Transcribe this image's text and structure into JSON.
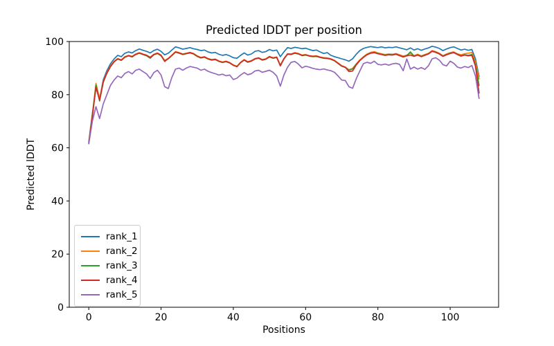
{
  "chart_data": {
    "type": "line",
    "title": "Predicted lDDT per position",
    "xlabel": "Positions",
    "ylabel": "Predicted lDDT",
    "xlim": [
      -5.4,
      113.4
    ],
    "ylim": [
      0,
      100
    ],
    "x_ticks": [
      0,
      20,
      40,
      60,
      80,
      100
    ],
    "y_ticks": [
      0,
      20,
      40,
      60,
      80,
      100
    ],
    "grid": false,
    "legend_position": "lower left",
    "x_start": 0,
    "x_step": 1,
    "n_points": 109,
    "series": [
      {
        "name": "rank_1",
        "color": "#1f77b4",
        "values": [
          62.3,
          73.0,
          82.6,
          78.2,
          85.6,
          89.0,
          91.6,
          93.4,
          94.8,
          94.3,
          95.6,
          96.1,
          95.7,
          96.6,
          97.2,
          96.7,
          96.3,
          95.7,
          96.6,
          97.1,
          96.3,
          95.0,
          95.6,
          96.8,
          98.0,
          97.6,
          97.1,
          97.4,
          97.7,
          97.3,
          97.0,
          96.6,
          96.8,
          96.1,
          95.7,
          95.9,
          95.2,
          94.8,
          95.1,
          94.6,
          93.9,
          93.7,
          94.8,
          95.7,
          94.9,
          95.3,
          96.3,
          96.6,
          95.9,
          96.2,
          97.0,
          96.5,
          96.8,
          94.3,
          96.1,
          97.7,
          97.4,
          97.8,
          97.6,
          97.3,
          97.5,
          97.0,
          96.6,
          96.8,
          96.1,
          95.5,
          95.8,
          94.8,
          94.3,
          93.9,
          93.5,
          93.1,
          92.6,
          93.5,
          95.2,
          96.6,
          97.4,
          97.8,
          98.1,
          97.9,
          97.7,
          98.0,
          97.6,
          97.8,
          97.7,
          98.0,
          97.6,
          97.3,
          96.9,
          97.6,
          96.8,
          97.3,
          96.7,
          97.2,
          97.6,
          98.2,
          97.9,
          97.4,
          96.6,
          97.2,
          97.7,
          98.0,
          97.4,
          96.8,
          97.1,
          96.7,
          97.0,
          93.5,
          86.8
        ]
      },
      {
        "name": "rank_2",
        "color": "#ff7f0e",
        "values": [
          62.0,
          72.5,
          84.3,
          78.5,
          85.0,
          88.3,
          90.8,
          92.5,
          93.6,
          93.1,
          94.3,
          94.8,
          94.4,
          95.3,
          95.8,
          95.3,
          94.9,
          94.1,
          95.2,
          95.7,
          94.9,
          92.9,
          93.7,
          94.9,
          96.2,
          95.8,
          95.3,
          95.6,
          95.9,
          95.5,
          94.6,
          94.0,
          94.3,
          93.6,
          93.2,
          93.4,
          92.7,
          92.3,
          92.6,
          92.1,
          91.2,
          90.7,
          92.2,
          93.2,
          92.4,
          92.8,
          93.6,
          93.9,
          93.2,
          93.5,
          94.4,
          93.9,
          94.2,
          91.2,
          93.6,
          95.4,
          95.3,
          95.8,
          95.5,
          94.9,
          95.1,
          94.7,
          94.5,
          94.6,
          94.2,
          93.9,
          93.8,
          93.5,
          92.9,
          91.9,
          90.9,
          90.4,
          89.4,
          89.9,
          91.6,
          93.1,
          94.3,
          95.3,
          95.9,
          96.2,
          95.7,
          95.4,
          95.1,
          95.3,
          95.2,
          95.5,
          95.0,
          94.5,
          94.9,
          95.6,
          94.7,
          95.2,
          94.6,
          95.1,
          95.6,
          96.6,
          96.2,
          95.6,
          94.7,
          95.3,
          95.8,
          96.1,
          95.4,
          95.0,
          95.4,
          95.6,
          95.9,
          92.4,
          85.9
        ]
      },
      {
        "name": "rank_3",
        "color": "#2ca02c",
        "values": [
          61.8,
          72.2,
          83.6,
          77.6,
          84.6,
          88.0,
          90.5,
          92.3,
          93.4,
          92.9,
          94.1,
          94.6,
          94.2,
          95.1,
          95.6,
          95.1,
          94.6,
          93.7,
          95.0,
          95.5,
          94.6,
          92.7,
          93.5,
          94.7,
          96.0,
          95.6,
          95.1,
          95.4,
          95.7,
          95.3,
          94.4,
          93.8,
          94.1,
          93.4,
          93.0,
          93.2,
          92.5,
          92.1,
          92.4,
          91.9,
          91.0,
          90.6,
          92.0,
          93.0,
          92.2,
          92.6,
          93.4,
          93.7,
          93.0,
          93.3,
          94.2,
          93.7,
          94.0,
          91.0,
          93.4,
          95.2,
          95.1,
          95.6,
          95.3,
          94.7,
          94.9,
          94.5,
          94.3,
          94.4,
          94.0,
          93.7,
          93.6,
          93.3,
          92.7,
          91.7,
          90.7,
          90.2,
          89.2,
          89.7,
          91.4,
          92.9,
          94.1,
          95.1,
          95.7,
          95.9,
          95.5,
          95.2,
          94.9,
          95.1,
          95.0,
          95.3,
          94.8,
          94.3,
          94.7,
          96.1,
          94.5,
          95.0,
          94.4,
          94.9,
          95.4,
          96.4,
          96.0,
          95.4,
          94.5,
          95.1,
          95.6,
          95.9,
          95.2,
          94.6,
          95.0,
          94.8,
          95.1,
          91.4,
          83.4
        ]
      },
      {
        "name": "rank_4",
        "color": "#d62728",
        "values": [
          61.6,
          71.8,
          82.9,
          77.9,
          84.8,
          88.1,
          90.6,
          92.4,
          93.5,
          93.0,
          94.2,
          94.7,
          94.3,
          95.2,
          95.7,
          95.2,
          94.8,
          94.0,
          95.1,
          95.6,
          94.8,
          92.5,
          93.6,
          94.8,
          96.1,
          95.7,
          95.2,
          95.5,
          95.8,
          95.4,
          94.5,
          93.9,
          94.2,
          93.5,
          93.1,
          93.3,
          92.6,
          92.2,
          92.5,
          92.0,
          91.1,
          90.5,
          92.1,
          93.1,
          92.3,
          92.7,
          93.5,
          93.8,
          93.1,
          93.4,
          94.3,
          93.8,
          94.1,
          90.8,
          93.5,
          95.3,
          95.2,
          95.7,
          95.4,
          94.8,
          95.0,
          94.6,
          94.4,
          94.5,
          94.1,
          93.8,
          93.7,
          93.4,
          92.8,
          91.8,
          90.8,
          90.3,
          88.7,
          88.9,
          91.2,
          92.8,
          94.0,
          95.0,
          95.6,
          95.8,
          95.4,
          95.1,
          94.8,
          95.0,
          94.9,
          95.2,
          94.7,
          94.2,
          94.6,
          94.9,
          94.4,
          94.9,
          94.3,
          94.8,
          95.3,
          96.3,
          95.9,
          95.3,
          94.4,
          95.0,
          95.5,
          95.8,
          95.1,
          94.5,
          94.9,
          94.6,
          94.8,
          90.7,
          80.6
        ]
      },
      {
        "name": "rank_5",
        "color": "#9467bd",
        "values": [
          61.5,
          70.0,
          75.5,
          71.0,
          76.5,
          80.0,
          83.5,
          85.5,
          87.0,
          86.4,
          88.0,
          88.7,
          87.8,
          89.2,
          89.6,
          88.7,
          87.8,
          86.1,
          88.3,
          89.2,
          87.4,
          83.0,
          82.3,
          86.5,
          89.6,
          90.0,
          89.2,
          90.0,
          90.6,
          90.3,
          90.0,
          89.2,
          89.6,
          88.8,
          88.3,
          87.9,
          87.4,
          87.7,
          87.1,
          87.4,
          85.7,
          86.2,
          87.4,
          88.3,
          87.5,
          87.9,
          88.9,
          89.2,
          88.4,
          88.8,
          89.2,
          88.4,
          87.0,
          83.2,
          87.4,
          90.3,
          92.2,
          92.5,
          91.5,
          90.1,
          90.7,
          90.4,
          89.9,
          89.6,
          89.4,
          89.7,
          89.3,
          89.0,
          88.4,
          87.0,
          85.5,
          85.3,
          83.0,
          82.4,
          86.0,
          88.9,
          91.7,
          92.2,
          91.8,
          92.6,
          91.4,
          91.2,
          91.5,
          91.1,
          91.6,
          91.8,
          91.4,
          89.0,
          93.4,
          89.6,
          90.4,
          89.6,
          90.2,
          89.5,
          90.9,
          93.5,
          93.9,
          93.0,
          91.3,
          90.8,
          92.6,
          91.8,
          90.4,
          90.0,
          90.6,
          90.2,
          91.0,
          87.0,
          78.6
        ]
      }
    ]
  }
}
